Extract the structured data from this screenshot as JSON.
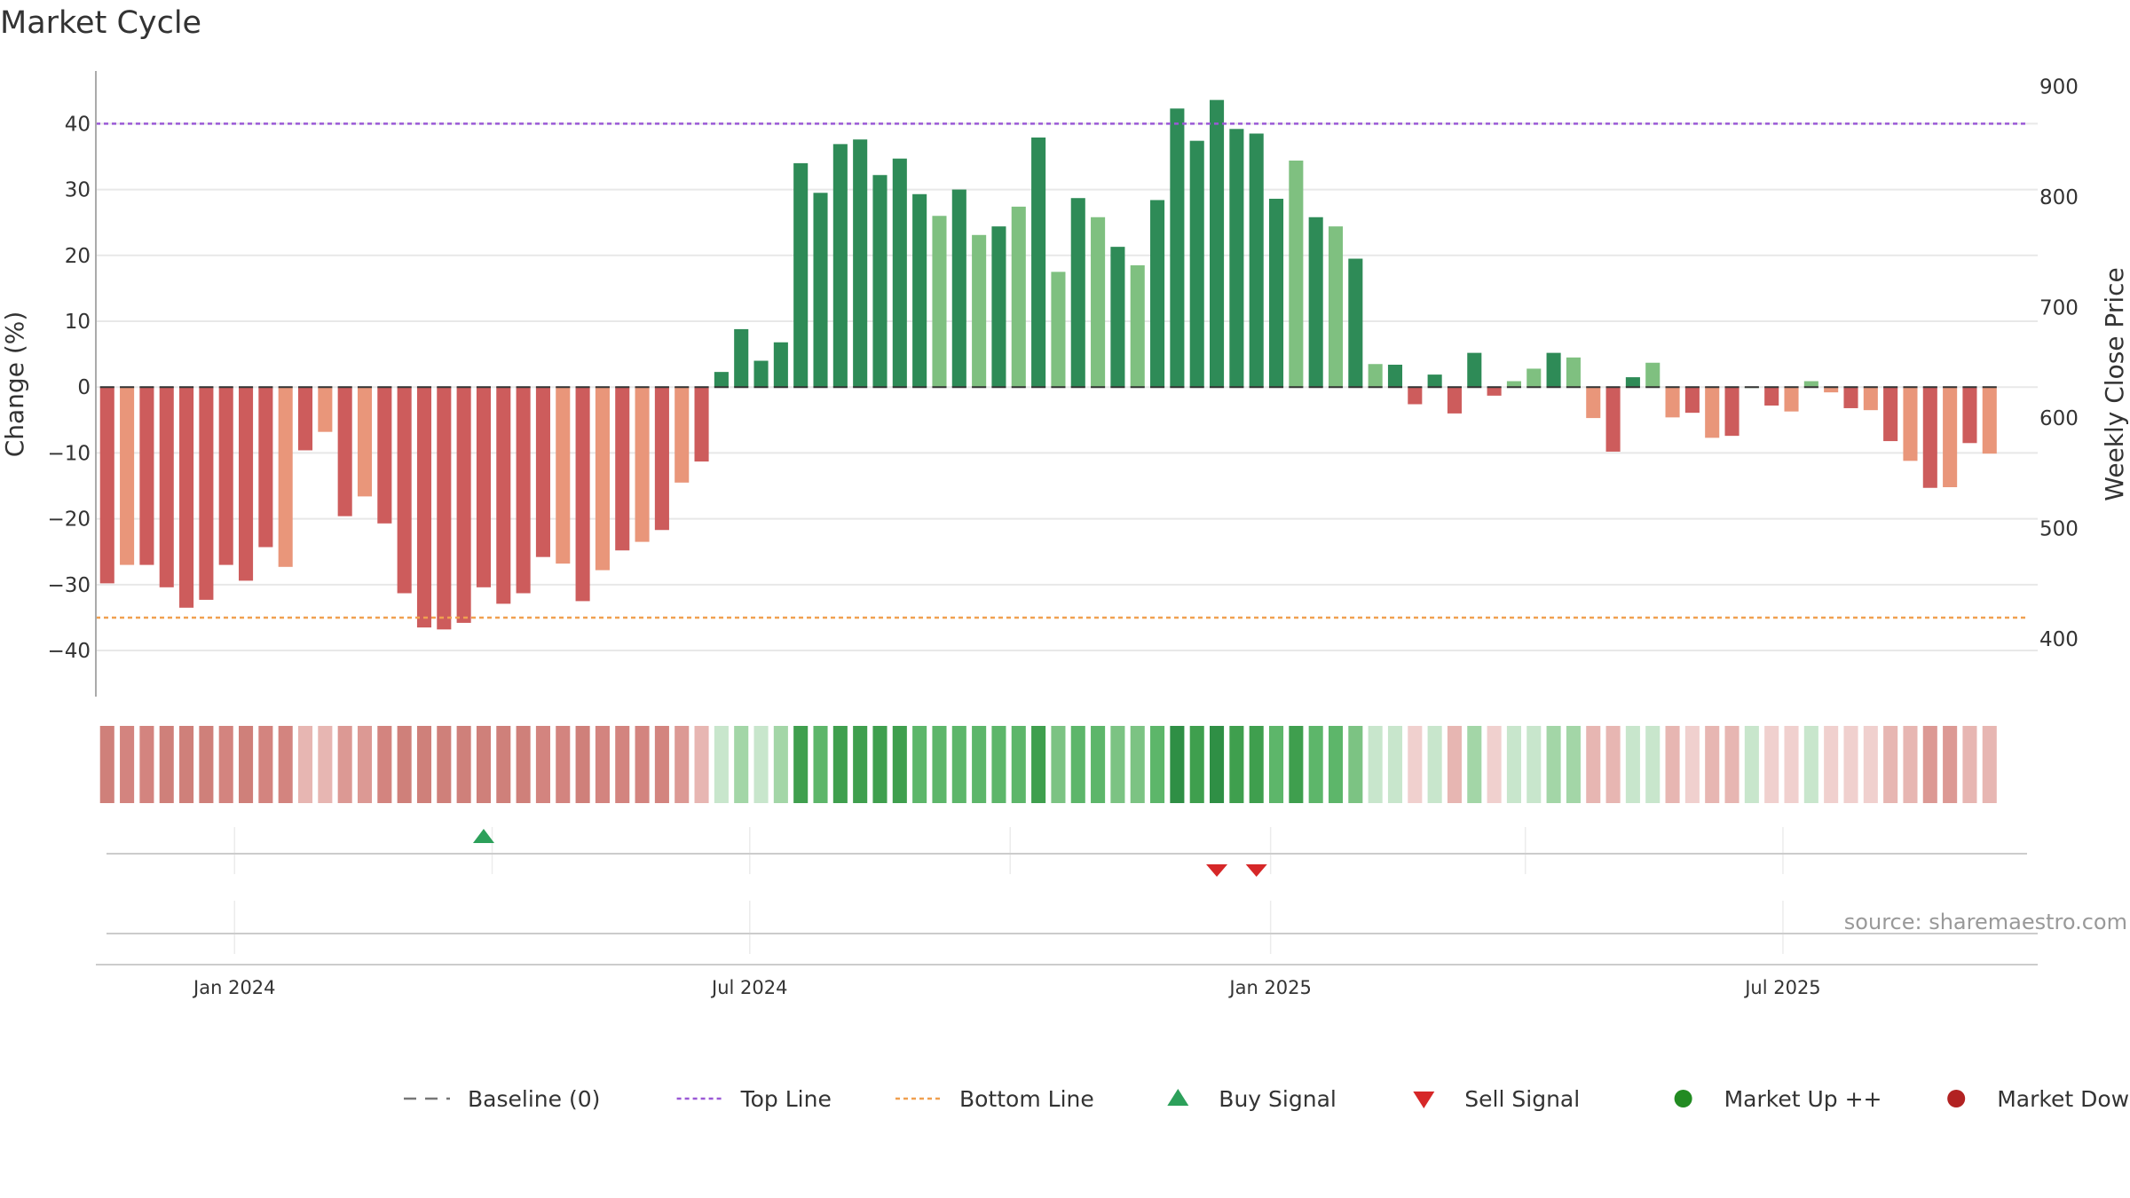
{
  "title": "Market Cycle",
  "source": "source: sharemaestro.com",
  "colors": {
    "strong_up": "#2e8b57",
    "weak_up": "#7fc080",
    "strong_down": "#cd5c5c",
    "weak_down": "#e9967a",
    "top_line": "#9b59d6",
    "bottom_line": "#f0a050",
    "baseline": "#777777",
    "buy": "#2ca05a",
    "sell": "#d62728",
    "market_up": "#228b22",
    "market_down": "#b22222",
    "grid": "#e8e8e8"
  },
  "legend": [
    {
      "label": "Baseline (0)",
      "kind": "baseline"
    },
    {
      "label": "Top Line",
      "kind": "top"
    },
    {
      "label": "Bottom Line",
      "kind": "bottom"
    },
    {
      "label": "Buy Signal",
      "kind": "buy"
    },
    {
      "label": "Sell Signal",
      "kind": "sell"
    },
    {
      "label": "Market Up ++",
      "kind": "up"
    },
    {
      "label": "Market Down --",
      "kind": "down"
    }
  ],
  "chart_data": {
    "type": "bar",
    "ylabel": "Change (%)",
    "y2label": "Weekly Close Price",
    "ylim": [
      -47,
      48
    ],
    "y2lim": [
      348,
      914
    ],
    "yticks": [
      -40,
      -30,
      -20,
      -10,
      0,
      10,
      20,
      30,
      40
    ],
    "y2ticks": [
      400,
      500,
      600,
      700,
      800,
      900
    ],
    "top_line": 40,
    "bottom_line": -35,
    "x_start": "2023-11-13",
    "x_end": "2025-09-29",
    "xticks": [
      {
        "label": "Jan 2024",
        "date": "2024-01-01"
      },
      {
        "label": "Jul 2024",
        "date": "2024-07-01"
      },
      {
        "label": "Jan 2025",
        "date": "2025-01-01"
      },
      {
        "label": "Jul 2025",
        "date": "2025-07-01"
      }
    ],
    "minor_grid_dates": [
      "2024-04-01",
      "2024-10-01",
      "2025-04-01"
    ],
    "first_week": "2023-11-17",
    "values": [
      -29.8,
      -27,
      -27,
      -30.4,
      -33.5,
      -32.3,
      -27,
      -29.4,
      -24.3,
      -27.3,
      -9.6,
      -6.8,
      -19.6,
      -16.6,
      -20.7,
      -31.3,
      -36.5,
      -36.8,
      -35.8,
      -30.4,
      -32.9,
      -31.3,
      -25.8,
      -26.8,
      -32.5,
      -27.8,
      -24.8,
      -23.5,
      -21.7,
      -14.5,
      -11.3,
      2.3,
      8.8,
      4,
      6.8,
      34,
      29.5,
      36.9,
      37.6,
      32.2,
      34.7,
      29.3,
      26,
      30,
      23.1,
      24.4,
      27.4,
      37.9,
      17.5,
      28.7,
      25.8,
      21.3,
      18.5,
      28.4,
      42.3,
      37.4,
      43.6,
      39.2,
      38.5,
      28.6,
      34.4,
      25.8,
      24.4,
      19.5,
      3.5,
      3.4,
      -2.6,
      1.9,
      -4,
      5.2,
      -1.3,
      0.9,
      2.8,
      5.2,
      4.5,
      -4.7,
      -9.8,
      1.5,
      3.7,
      -4.6,
      -3.9,
      -7.7,
      -7.4,
      0,
      -2.8,
      -3.7,
      0.9,
      -0.8,
      -3.2,
      -3.5,
      -8.2,
      -11.2,
      -15.3,
      -15.2,
      -8.5,
      -10.1
    ],
    "strength": [
      3,
      3,
      3,
      3,
      3,
      3,
      3,
      3,
      3,
      3,
      1,
      2,
      3,
      2,
      3,
      3,
      3,
      3,
      3,
      3,
      3,
      3,
      2,
      3,
      3,
      3,
      3,
      3,
      3,
      3,
      3,
      1,
      1,
      1,
      1,
      4,
      4,
      4,
      4,
      4,
      4,
      3,
      3,
      3,
      3,
      3,
      3,
      5,
      3,
      3,
      3,
      3,
      3,
      4,
      5,
      4,
      5,
      4,
      4,
      3,
      3,
      3,
      2,
      2,
      1,
      1,
      1,
      1,
      1,
      2,
      1,
      1,
      1,
      1,
      1,
      1,
      1,
      1,
      1,
      1,
      1,
      1,
      1,
      1,
      1,
      1,
      1,
      1,
      1,
      1,
      1,
      1,
      2,
      2,
      2,
      2
    ],
    "buy_signals": [
      "2024-03-29"
    ],
    "sell_signals": [
      "2024-12-13",
      "2024-12-27"
    ]
  }
}
